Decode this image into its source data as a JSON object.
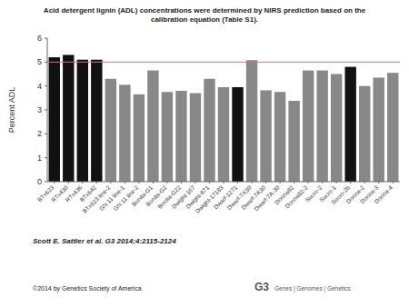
{
  "chart_data": {
    "type": "bar",
    "title": "Acid detergent lignin (ADL) concentrations were determined by NIRS prediction based on the\ncalibration equation (Table S1).",
    "y_label": "Percent ADL",
    "categories": [
      "BTx623",
      "RTx430",
      "RTx436",
      "BTx642",
      "BTx623 line-2",
      "GN 11 line-1",
      "GN 11 line-2",
      "Bonita-G1",
      "Bonita-G2",
      "Bonita-G22",
      "Dwight-167",
      "Dwight-871",
      "Dwight-17183",
      "Dwarf-1271",
      "Dwarf-TX30",
      "Dwarf-7A30",
      "Dwarf-7A-30",
      "Donna82",
      "Donna82-2",
      "Sucro-2",
      "Sucro-1",
      "Sucro-2b",
      "Donna-2",
      "Donna-3",
      "Donna-4"
    ],
    "values": [
      5.2,
      5.3,
      5.1,
      5.1,
      4.3,
      4.05,
      3.65,
      4.65,
      3.75,
      3.8,
      3.7,
      4.3,
      3.95,
      3.95,
      5.08,
      3.82,
      3.75,
      3.38,
      4.65,
      4.65,
      4.5,
      4.8,
      4.0,
      4.35,
      4.55
    ],
    "colors": [
      "#111111",
      "#111111",
      "#111111",
      "#111111",
      "#888888",
      "#888888",
      "#888888",
      "#888888",
      "#888888",
      "#888888",
      "#888888",
      "#888888",
      "#888888",
      "#111111",
      "#888888",
      "#888888",
      "#888888",
      "#888888",
      "#888888",
      "#888888",
      "#888888",
      "#111111",
      "#888888",
      "#888888",
      "#888888"
    ],
    "ylim": [
      0,
      6
    ],
    "yticks": [
      0,
      1,
      2,
      3,
      4,
      5,
      6
    ],
    "hline": 5.0,
    "hline_color": "#cc7777",
    "grid": false,
    "annotations": [
      "Scott E. Sattler et al. G3 2014;4:2115-2124",
      "©2014 by Genetics Society of America",
      "G3",
      "Genes | Genomes | Genetics"
    ]
  }
}
